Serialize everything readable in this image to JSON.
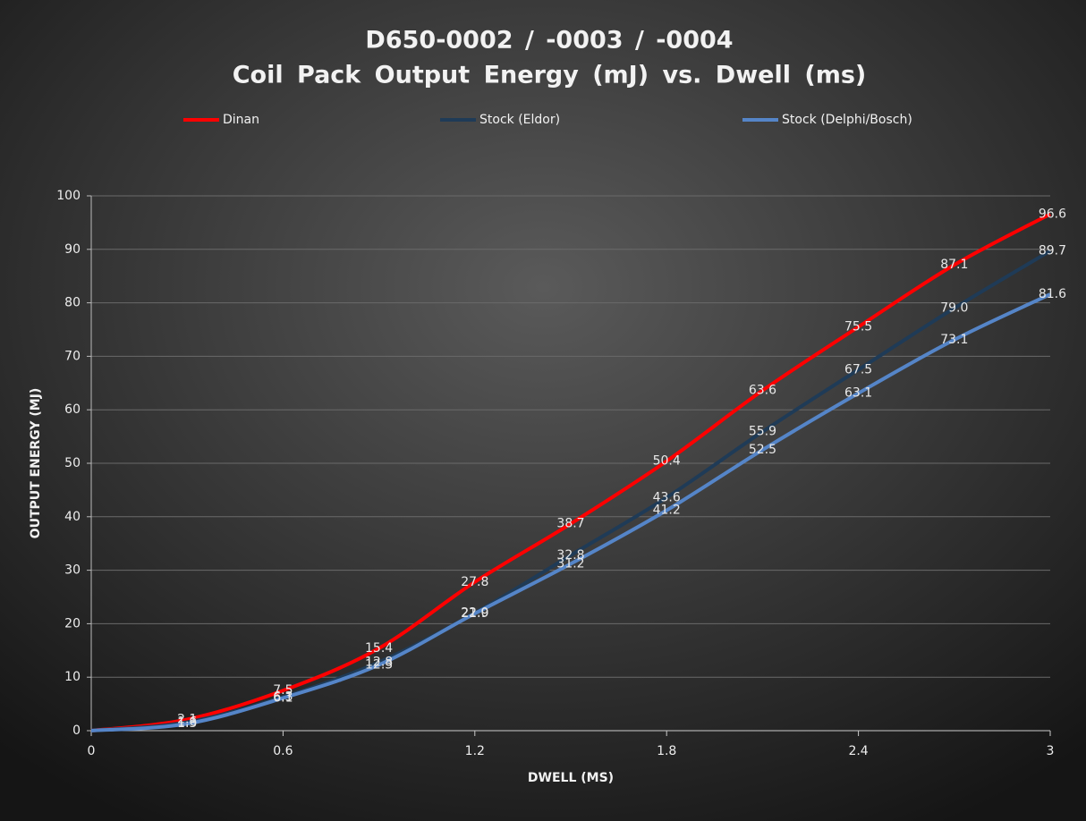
{
  "chart_data": {
    "type": "line",
    "title": "D650-0002 / -0003 / -0004",
    "subtitle": "Coil Pack Output Energy (mJ) vs. Dwell (ms)",
    "x_label": "DWELL (MS)",
    "y_label": "OUTPUT ENERGY (MJ)",
    "x": [
      0,
      0.3,
      0.6,
      0.9,
      1.2,
      1.5,
      1.8,
      2.1,
      2.4,
      2.7,
      3.0
    ],
    "series": [
      {
        "name": "Dinan",
        "color": "#ff0000",
        "values": [
          0,
          2.1,
          7.5,
          15.4,
          27.8,
          38.7,
          50.4,
          63.6,
          75.5,
          87.1,
          96.6
        ],
        "value_labels": [
          null,
          "2.1",
          "7.5",
          "15.4",
          "27.8",
          "38.7",
          "50.4",
          "63.6",
          "75.5",
          "87.1",
          "96.6"
        ]
      },
      {
        "name": "Stock (Eldor)",
        "color": "#1f3b57",
        "values": [
          0,
          1.6,
          6.3,
          12.8,
          22.0,
          32.8,
          43.6,
          55.9,
          67.5,
          79.0,
          89.7
        ],
        "value_labels": [
          null,
          "1.6",
          "6.3",
          "12.8",
          "22.0",
          "32.8",
          "43.6",
          "55.9",
          "67.5",
          "79.0",
          "89.7"
        ]
      },
      {
        "name": "Stock (Delphi/Bosch)",
        "color": "#5585c8",
        "values": [
          0,
          1.3,
          6.1,
          12.3,
          21.9,
          31.2,
          41.2,
          52.5,
          63.1,
          73.1,
          81.6
        ],
        "value_labels": [
          null,
          "1.3",
          "6.1",
          "12.3",
          "21.9",
          "31.2",
          "41.2",
          "52.5",
          "63.1",
          "73.1",
          "81.6"
        ]
      }
    ],
    "xlim": [
      0,
      3
    ],
    "xticks": [
      0,
      0.6,
      1.2,
      1.8,
      2.4,
      3
    ],
    "ylim": [
      0,
      100
    ],
    "yticks": [
      0,
      10,
      20,
      30,
      40,
      50,
      60,
      70,
      80,
      90,
      100
    ],
    "grid": true,
    "legend": "top"
  }
}
